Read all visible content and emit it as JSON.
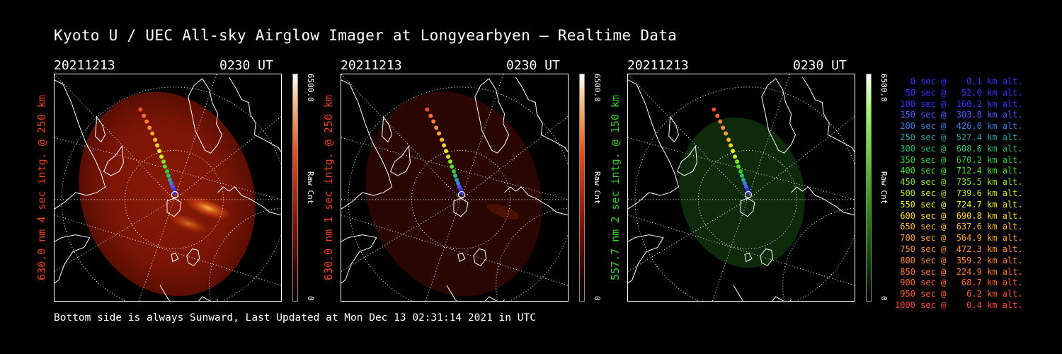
{
  "title": "Kyoto U / UEC All-sky Airglow Imager at Longyearbyen — Realtime Data",
  "footer": "Bottom side is always Sunward, Last Updated at Mon Dec 13 02:31:14 2021 in UTC",
  "colors": {
    "red": "#e8421e",
    "green": "#3ccf2a",
    "white": "#ffffff"
  },
  "panels": [
    {
      "date": "20211213",
      "time": "0230 UT",
      "label": "630.0 nm  4 sec intg. @ 250 km",
      "cb_max": "6500.0",
      "cb_unit": "Raw Cnt",
      "cb_min": "0",
      "color": "#e8421e",
      "glow": "red-bright"
    },
    {
      "date": "20211213",
      "time": "0230 UT",
      "label": "630.0 nm  1 sec intg. @ 250 km",
      "cb_max": "6500.0",
      "cb_unit": "Raw Cnt",
      "cb_min": "0",
      "color": "#e8421e",
      "glow": "red-dim"
    },
    {
      "date": "20211213",
      "time": "0230 UT",
      "label": "557.7 nm  2 sec intg. @ 150 km",
      "cb_max": "6500.0",
      "cb_unit": "Raw Cnt",
      "cb_min": "0",
      "color": "#3ccf2a",
      "glow": "green"
    }
  ],
  "legend": [
    {
      "text": "   0 sec @    0.1 km alt.",
      "color": "#3535ff"
    },
    {
      "text": "  50 sec @   52.0 km alt.",
      "color": "#3535ff"
    },
    {
      "text": " 100 sec @  160.2 km alt.",
      "color": "#3535ff"
    },
    {
      "text": " 150 sec @  303.8 km alt.",
      "color": "#4a5cff"
    },
    {
      "text": " 200 sec @  426.0 km alt.",
      "color": "#3a7fe0"
    },
    {
      "text": " 250 sec @  527.4 km alt.",
      "color": "#2aa0a8"
    },
    {
      "text": " 300 sec @  608.6 km alt.",
      "color": "#25c070"
    },
    {
      "text": " 350 sec @  670.2 km alt.",
      "color": "#2dd13a"
    },
    {
      "text": " 400 sec @  712.4 km alt.",
      "color": "#4ee02a"
    },
    {
      "text": " 450 sec @  735.5 km alt.",
      "color": "#8ae826"
    },
    {
      "text": " 500 sec @  739.6 km alt.",
      "color": "#c8ec28"
    },
    {
      "text": " 550 sec @  724.7 km alt.",
      "color": "#f0ef2a"
    },
    {
      "text": " 600 sec @  690.8 km alt.",
      "color": "#ffd52a"
    },
    {
      "text": " 650 sec @  637.6 km alt.",
      "color": "#ffba2a"
    },
    {
      "text": " 700 sec @  564.9 km alt.",
      "color": "#ffa52a"
    },
    {
      "text": " 750 sec @  472.3 km alt.",
      "color": "#ff9430"
    },
    {
      "text": " 800 sec @  359.2 km alt.",
      "color": "#ff8a33"
    },
    {
      "text": " 850 sec @  224.9 km alt.",
      "color": "#ff7c33"
    },
    {
      "text": " 900 sec @   68.7 km alt.",
      "color": "#ff6a33"
    },
    {
      "text": " 950 sec @    6.2 km alt.",
      "color": "#ff5a33"
    },
    {
      "text": "1000 sec @    0.4 km alt.",
      "color": "#ff4a33"
    }
  ]
}
